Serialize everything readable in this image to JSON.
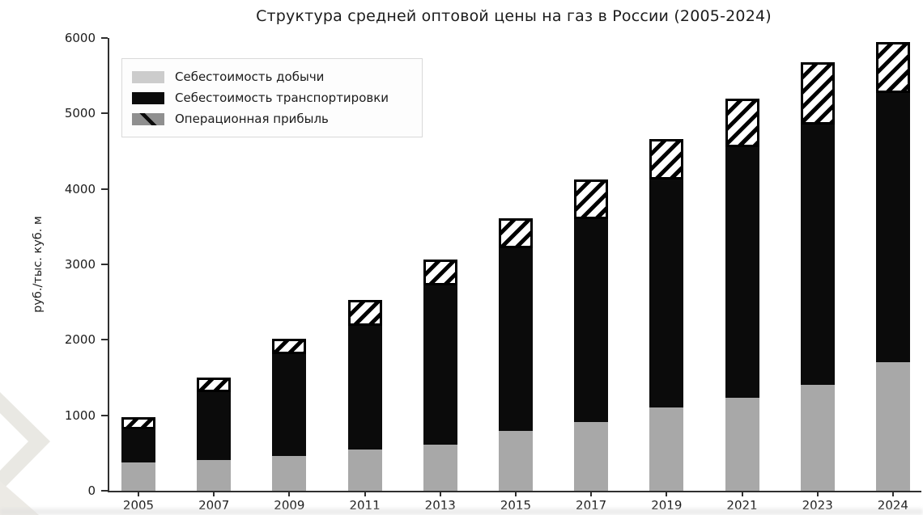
{
  "title": "Структура средней оптовой цены на газ в России (2005-2024)",
  "chart_data": {
    "type": "bar",
    "stacked": true,
    "title": "Структура средней оптовой цены на газ в России (2005-2024)",
    "categories": [
      "2005",
      "2007",
      "2009",
      "2011",
      "2013",
      "2015",
      "2017",
      "2019",
      "2021",
      "2023",
      "2024"
    ],
    "series": [
      {
        "name": "Себестоимость добычи",
        "style": "solid",
        "color": "#a8a8a8",
        "legend_color": "#cccccc",
        "values": [
          380,
          410,
          460,
          550,
          610,
          790,
          910,
          1100,
          1230,
          1400,
          1700
        ]
      },
      {
        "name": "Себестоимость транспортировки",
        "style": "solid",
        "color": "#0b0b0b",
        "legend_color": "#0b0b0b",
        "values": [
          430,
          900,
          1350,
          1640,
          2110,
          2420,
          2690,
          3030,
          3320,
          3450,
          3570
        ]
      },
      {
        "name": "Операционная прибыль",
        "style": "hatched",
        "color": "#ffffff",
        "hatch_color": "#000000",
        "legend_color": "#8f8f8f",
        "values": [
          170,
          190,
          200,
          340,
          350,
          400,
          530,
          530,
          650,
          830,
          680
        ]
      }
    ],
    "totals": [
      980,
      1500,
      2010,
      2530,
      3070,
      3610,
      4130,
      4660,
      5200,
      5680,
      5950
    ],
    "xlabel": "",
    "ylabel": "руб./тыс. куб. м",
    "ylim": [
      0,
      6000
    ],
    "yticks": [
      0,
      1000,
      2000,
      3000,
      4000,
      5000,
      6000
    ],
    "grid": false,
    "legend_position": "upper left"
  },
  "axis_color": "#2f2f2f",
  "text_color": "#1c1c1c"
}
